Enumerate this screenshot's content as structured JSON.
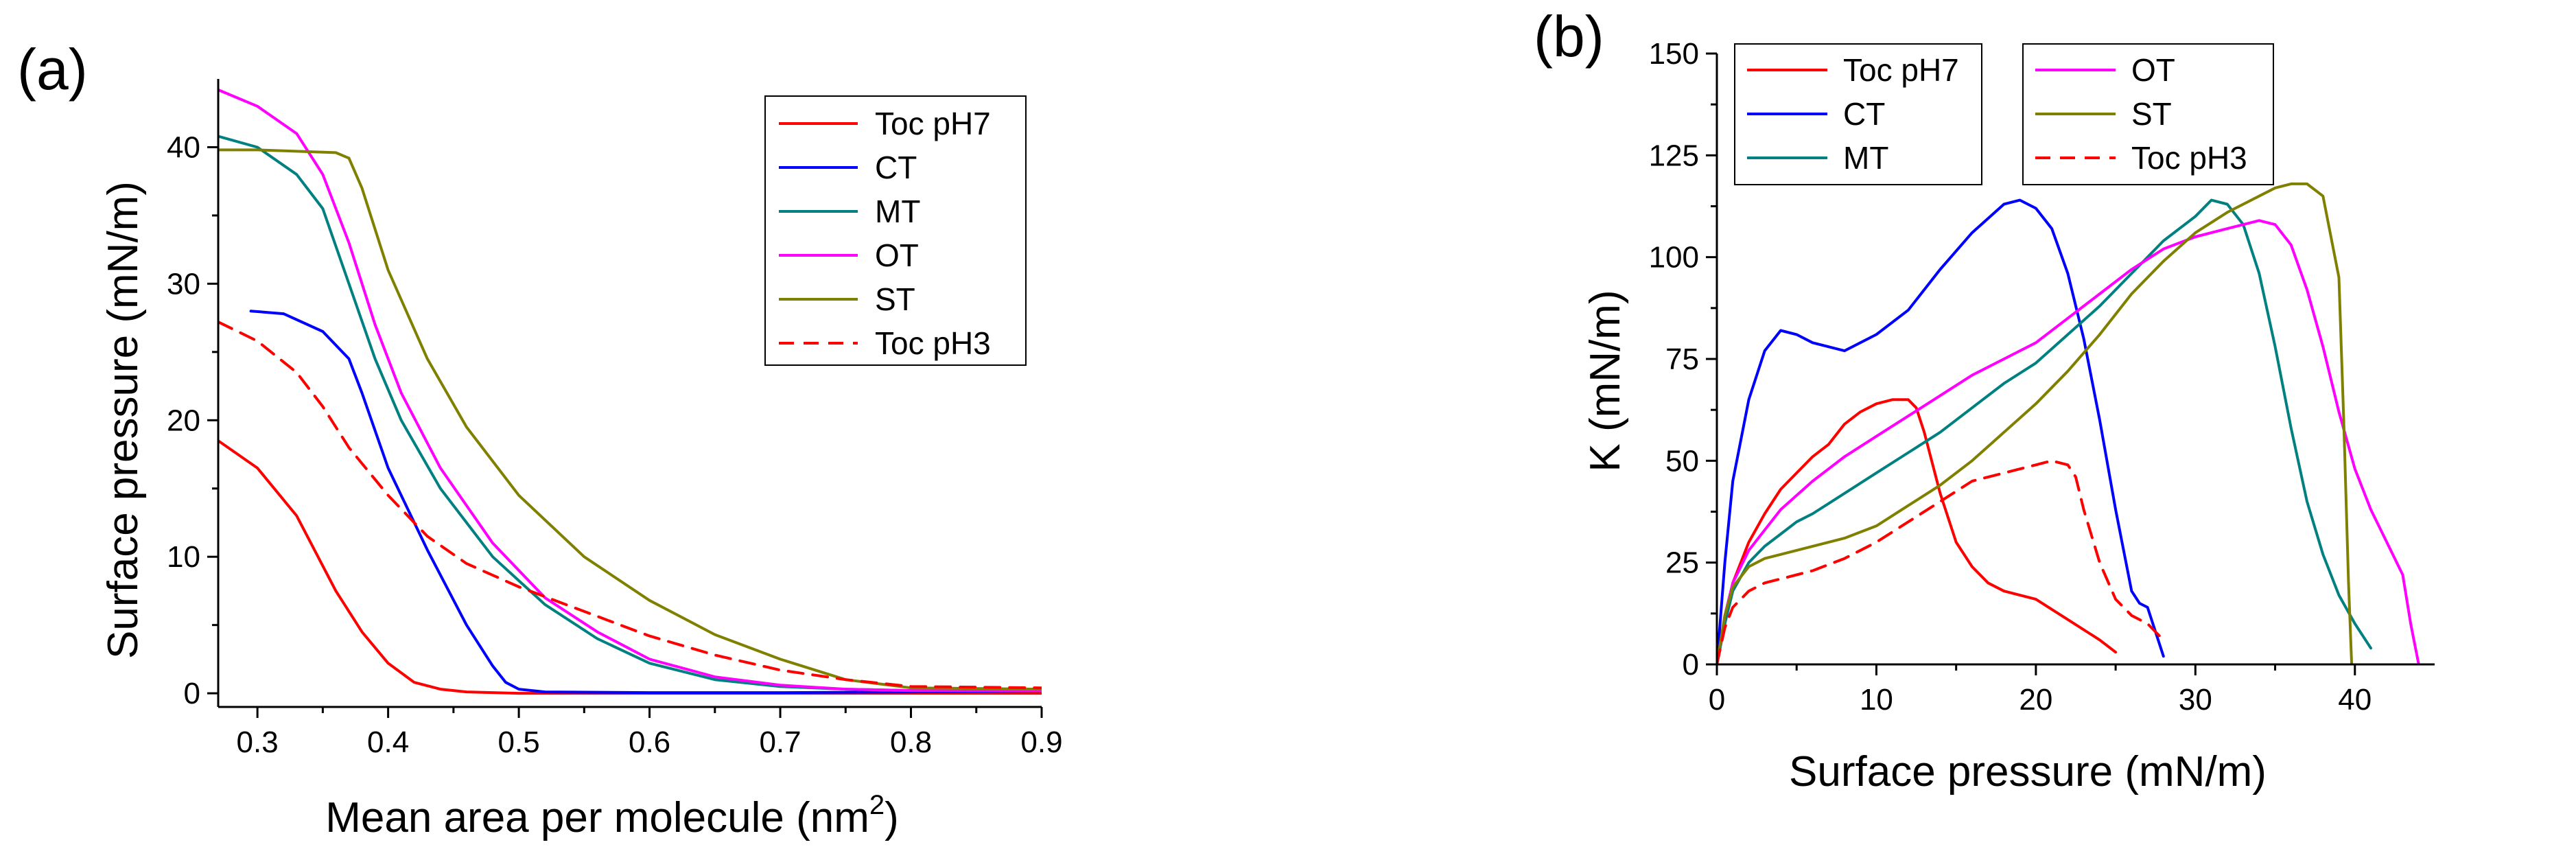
{
  "chart_data": [
    {
      "panel_label": "(a)",
      "type": "line",
      "xlabel": "Mean area per molecule (nm",
      "xlabel_sup": "2",
      "xlabel_end": ")",
      "ylabel": "Surface pressure (mN/m)",
      "xlim": [
        0.27,
        0.9
      ],
      "ylim": [
        -1,
        45
      ],
      "xticks": [
        0.3,
        0.4,
        0.5,
        0.6,
        0.7,
        0.8,
        0.9
      ],
      "xtick_labels": [
        "0.3",
        "0.4",
        "0.5",
        "0.6",
        "0.7",
        "0.8",
        "0.9"
      ],
      "yticks": [
        0,
        10,
        20,
        30,
        40
      ],
      "ytick_labels": [
        "0",
        "10",
        "20",
        "30",
        "40"
      ],
      "legend_position": "top-right",
      "series": [
        {
          "name": "Toc pH7",
          "color": "#ff0000",
          "dash": "solid",
          "x": [
            0.27,
            0.3,
            0.33,
            0.36,
            0.38,
            0.4,
            0.42,
            0.44,
            0.46,
            0.5,
            0.6,
            0.7,
            0.8,
            0.9
          ],
          "y": [
            18.5,
            16.5,
            13.0,
            7.5,
            4.5,
            2.2,
            0.8,
            0.3,
            0.1,
            0.0,
            0.0,
            0.0,
            0.0,
            0.0
          ]
        },
        {
          "name": "CT",
          "color": "#0000ff",
          "dash": "solid",
          "x": [
            0.295,
            0.32,
            0.35,
            0.37,
            0.38,
            0.4,
            0.43,
            0.46,
            0.48,
            0.49,
            0.5,
            0.52,
            0.6,
            0.7,
            0.8,
            0.9
          ],
          "y": [
            28.0,
            27.8,
            26.5,
            24.5,
            22.0,
            16.5,
            10.5,
            5.0,
            2.0,
            0.8,
            0.3,
            0.1,
            0.05,
            0.05,
            0.1,
            0.2
          ]
        },
        {
          "name": "MT",
          "color": "#008080",
          "dash": "solid",
          "x": [
            0.27,
            0.3,
            0.33,
            0.35,
            0.37,
            0.39,
            0.41,
            0.44,
            0.48,
            0.52,
            0.56,
            0.6,
            0.65,
            0.7,
            0.75,
            0.8,
            0.9
          ],
          "y": [
            40.8,
            40.0,
            38.0,
            35.5,
            30.0,
            24.5,
            20.0,
            15.0,
            10.0,
            6.5,
            4.0,
            2.2,
            1.0,
            0.5,
            0.3,
            0.2,
            0.2
          ]
        },
        {
          "name": "OT",
          "color": "#ff00ff",
          "dash": "solid",
          "x": [
            0.27,
            0.3,
            0.33,
            0.35,
            0.37,
            0.39,
            0.41,
            0.44,
            0.48,
            0.52,
            0.56,
            0.6,
            0.65,
            0.7,
            0.75,
            0.8,
            0.9
          ],
          "y": [
            44.2,
            43.0,
            41.0,
            38.0,
            33.0,
            27.0,
            22.0,
            16.5,
            11.0,
            7.0,
            4.5,
            2.5,
            1.2,
            0.6,
            0.3,
            0.2,
            0.2
          ]
        },
        {
          "name": "ST",
          "color": "#808000",
          "dash": "solid",
          "x": [
            0.27,
            0.3,
            0.33,
            0.36,
            0.37,
            0.38,
            0.4,
            0.43,
            0.46,
            0.5,
            0.55,
            0.6,
            0.65,
            0.7,
            0.75,
            0.8,
            0.9
          ],
          "y": [
            39.8,
            39.8,
            39.7,
            39.6,
            39.2,
            37.0,
            31.0,
            24.5,
            19.5,
            14.5,
            10.0,
            6.8,
            4.3,
            2.5,
            1.0,
            0.4,
            0.3
          ]
        },
        {
          "name": "Toc pH3",
          "color": "#ff0000",
          "dash": "dashed",
          "x": [
            0.27,
            0.3,
            0.33,
            0.35,
            0.37,
            0.4,
            0.43,
            0.46,
            0.5,
            0.55,
            0.6,
            0.65,
            0.7,
            0.75,
            0.8,
            0.9
          ],
          "y": [
            27.2,
            25.8,
            23.5,
            21.0,
            18.0,
            14.5,
            11.5,
            9.5,
            7.8,
            6.0,
            4.2,
            2.8,
            1.7,
            1.0,
            0.5,
            0.4
          ]
        }
      ]
    },
    {
      "panel_label": "(b)",
      "type": "line",
      "xlabel": "Surface pressure (mN/m)",
      "ylabel": "K (mN/m)",
      "xlim": [
        0,
        45
      ],
      "ylim": [
        0,
        150
      ],
      "xticks": [
        0,
        10,
        20,
        30,
        40
      ],
      "xtick_labels": [
        "0",
        "10",
        "20",
        "30",
        "40"
      ],
      "yticks": [
        0,
        25,
        50,
        75,
        100,
        125,
        150
      ],
      "ytick_labels": [
        "0",
        "25",
        "50",
        "75",
        "100",
        "125",
        "150"
      ],
      "legend_position": "top-left",
      "series": [
        {
          "name": "Toc pH7",
          "color": "#ff0000",
          "dash": "solid",
          "x": [
            0,
            0.5,
            1,
            2,
            3,
            4,
            5,
            6,
            7,
            8,
            9,
            10,
            11,
            12,
            12.5,
            13,
            14,
            15,
            16,
            17,
            18,
            20,
            22,
            24,
            25
          ],
          "y": [
            0,
            10,
            20,
            30,
            37,
            43,
            47,
            51,
            54,
            59,
            62,
            64,
            65,
            65,
            63,
            57,
            42,
            30,
            24,
            20,
            18,
            16,
            11,
            6,
            3
          ]
        },
        {
          "name": "CT",
          "color": "#0000ff",
          "dash": "solid",
          "x": [
            0,
            0.5,
            1,
            2,
            3,
            4,
            5,
            6,
            7,
            8,
            10,
            12,
            14,
            16,
            18,
            19,
            20,
            21,
            22,
            23,
            24,
            25,
            26,
            26.5,
            27,
            27.5,
            28
          ],
          "y": [
            0,
            25,
            45,
            65,
            77,
            82,
            81,
            79,
            78,
            77,
            81,
            87,
            97,
            106,
            113,
            114,
            112,
            107,
            96,
            80,
            60,
            38,
            18,
            15,
            14,
            8,
            2
          ]
        },
        {
          "name": "MT",
          "color": "#008080",
          "dash": "solid",
          "x": [
            0,
            0.5,
            1,
            2,
            3,
            4,
            5,
            6,
            8,
            10,
            12,
            14,
            16,
            18,
            20,
            22,
            24,
            26,
            28,
            30,
            31,
            32,
            33,
            34,
            35,
            36,
            37,
            38,
            39,
            40,
            41
          ],
          "y": [
            0,
            10,
            18,
            25,
            29,
            32,
            35,
            37,
            42,
            47,
            52,
            57,
            63,
            69,
            74,
            81,
            88,
            96,
            104,
            110,
            114,
            113,
            108,
            96,
            78,
            58,
            40,
            27,
            17,
            10,
            4
          ]
        },
        {
          "name": "OT",
          "color": "#ff00ff",
          "dash": "solid",
          "x": [
            0,
            0.5,
            1,
            2,
            3,
            4,
            6,
            8,
            10,
            12,
            14,
            16,
            18,
            20,
            22,
            24,
            26,
            28,
            30,
            32,
            34,
            35,
            36,
            37,
            38,
            39,
            40,
            41,
            42,
            43,
            43.5,
            44
          ],
          "y": [
            0,
            12,
            20,
            28,
            33,
            38,
            45,
            51,
            56,
            61,
            66,
            71,
            75,
            79,
            85,
            91,
            97,
            102,
            105,
            107,
            109,
            108,
            103,
            92,
            78,
            62,
            48,
            38,
            30,
            22,
            10,
            0
          ]
        },
        {
          "name": "ST",
          "color": "#808000",
          "dash": "solid",
          "x": [
            0,
            0.5,
            1,
            2,
            3,
            4,
            6,
            8,
            10,
            12,
            14,
            16,
            18,
            20,
            22,
            24,
            26,
            28,
            30,
            32,
            34,
            35,
            36,
            37,
            38,
            39,
            39.3,
            39.6,
            39.8
          ],
          "y": [
            0,
            12,
            19,
            24,
            26,
            27,
            29,
            31,
            34,
            39,
            44,
            50,
            57,
            64,
            72,
            81,
            91,
            99,
            106,
            111,
            115,
            117,
            118,
            118,
            115,
            95,
            60,
            20,
            0
          ]
        },
        {
          "name": "Toc pH3",
          "color": "#ff0000",
          "dash": "dashed",
          "x": [
            0,
            0.5,
            1,
            2,
            3,
            4,
            5,
            6,
            8,
            10,
            12,
            14,
            16,
            18,
            19,
            20,
            21,
            22,
            22.5,
            23,
            24,
            25,
            26,
            27,
            28
          ],
          "y": [
            0,
            9,
            14,
            18,
            20,
            21,
            22,
            23,
            26,
            30,
            35,
            40,
            45,
            47,
            48,
            49,
            50,
            49,
            46,
            38,
            25,
            16,
            12,
            10,
            6
          ]
        }
      ]
    }
  ]
}
